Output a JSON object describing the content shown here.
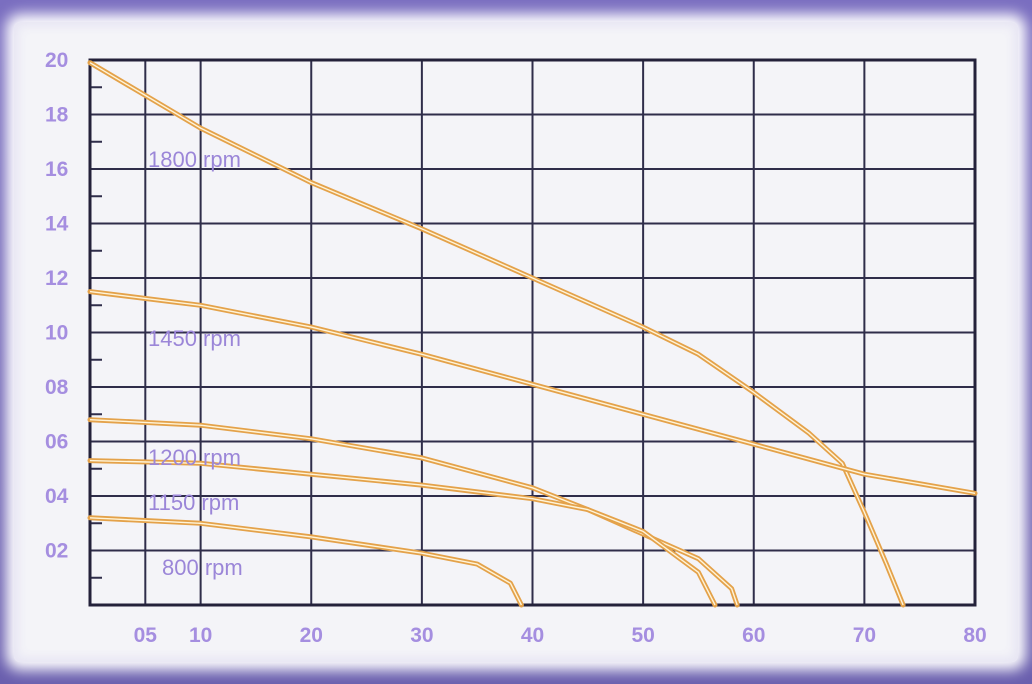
{
  "chart_data": {
    "type": "line",
    "title": "",
    "xlabel": "",
    "ylabel": "",
    "xlim": [
      0,
      80
    ],
    "ylim": [
      0,
      20
    ],
    "grid": true,
    "legend": "none",
    "x_ticks": [
      {
        "value": 5,
        "label": "05"
      },
      {
        "value": 10,
        "label": "10"
      },
      {
        "value": 20,
        "label": "20"
      },
      {
        "value": 30,
        "label": "30"
      },
      {
        "value": 40,
        "label": "40"
      },
      {
        "value": 50,
        "label": "50"
      },
      {
        "value": 60,
        "label": "60"
      },
      {
        "value": 70,
        "label": "70"
      },
      {
        "value": 80,
        "label": "80"
      }
    ],
    "y_ticks": [
      {
        "value": 2,
        "label": "02"
      },
      {
        "value": 4,
        "label": "04"
      },
      {
        "value": 6,
        "label": "06"
      },
      {
        "value": 8,
        "label": "08"
      },
      {
        "value": 10,
        "label": "10"
      },
      {
        "value": 12,
        "label": "12"
      },
      {
        "value": 14,
        "label": "14"
      },
      {
        "value": 16,
        "label": "16"
      },
      {
        "value": 18,
        "label": "18"
      },
      {
        "value": 20,
        "label": "20"
      }
    ],
    "series": [
      {
        "name": "1800 rpm",
        "points": [
          [
            0,
            19.9
          ],
          [
            5,
            18.7
          ],
          [
            10,
            17.5
          ],
          [
            20,
            15.5
          ],
          [
            30,
            13.8
          ],
          [
            40,
            12.0
          ],
          [
            50,
            10.2
          ],
          [
            55,
            9.2
          ],
          [
            60,
            7.8
          ],
          [
            65,
            6.3
          ],
          [
            68,
            5.2
          ],
          [
            70,
            3.4
          ],
          [
            72,
            1.5
          ],
          [
            73.5,
            0
          ]
        ]
      },
      {
        "name": "1450 rpm",
        "points": [
          [
            0,
            11.5
          ],
          [
            10,
            11.0
          ],
          [
            20,
            10.2
          ],
          [
            30,
            9.2
          ],
          [
            40,
            8.1
          ],
          [
            50,
            7.0
          ],
          [
            60,
            5.9
          ],
          [
            70,
            4.8
          ],
          [
            80,
            4.1
          ]
        ]
      },
      {
        "name": "1200 rpm",
        "points": [
          [
            0,
            6.8
          ],
          [
            10,
            6.6
          ],
          [
            20,
            6.1
          ],
          [
            30,
            5.4
          ],
          [
            40,
            4.3
          ],
          [
            45,
            3.5
          ],
          [
            50,
            2.6
          ],
          [
            55,
            1.7
          ],
          [
            58,
            0.6
          ],
          [
            58.5,
            0
          ]
        ]
      },
      {
        "name": "1150 rpm",
        "points": [
          [
            0,
            5.3
          ],
          [
            10,
            5.2
          ],
          [
            20,
            4.8
          ],
          [
            30,
            4.4
          ],
          [
            40,
            3.9
          ],
          [
            45,
            3.5
          ],
          [
            50,
            2.7
          ],
          [
            55,
            1.2
          ],
          [
            56.5,
            0
          ]
        ]
      },
      {
        "name": "800 rpm",
        "points": [
          [
            0,
            3.2
          ],
          [
            10,
            3.0
          ],
          [
            20,
            2.5
          ],
          [
            30,
            1.9
          ],
          [
            35,
            1.5
          ],
          [
            38,
            0.8
          ],
          [
            39,
            0
          ]
        ]
      }
    ]
  }
}
